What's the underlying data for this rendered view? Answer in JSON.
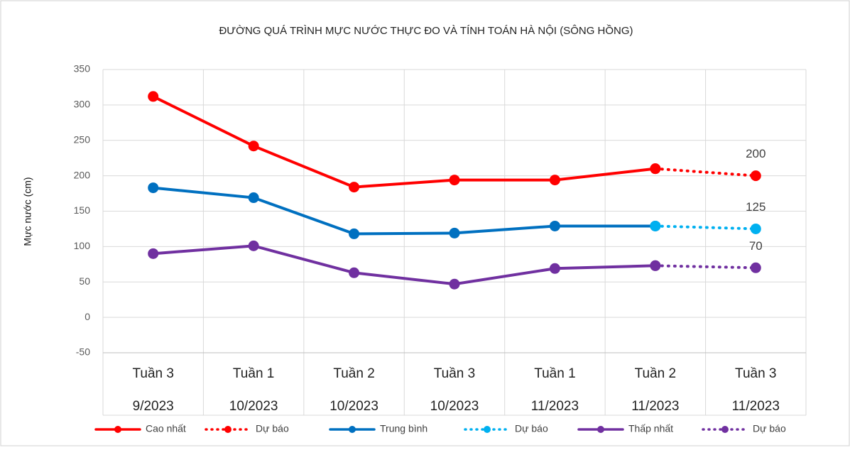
{
  "chart_data": {
    "type": "line",
    "title": "ĐƯỜNG QUÁ TRÌNH MỰC NƯỚC THỰC ĐO VÀ TÍNH TOÁN HÀ NỘI (SÔNG HỒNG)",
    "y_label": "Mực nước (cm)",
    "categories": [
      [
        "Tuần 3",
        "9/2023"
      ],
      [
        "Tuần 1",
        "10/2023"
      ],
      [
        "Tuần 2",
        "10/2023"
      ],
      [
        "Tuần 3",
        "10/2023"
      ],
      [
        "Tuần 1",
        "11/2023"
      ],
      [
        "Tuần 2",
        "11/2023"
      ],
      [
        "Tuần 3",
        "11/2023"
      ]
    ],
    "series": [
      {
        "name": "Cao nhất",
        "color": "#ff0000",
        "dash": false,
        "values": [
          312,
          242,
          184,
          194,
          194,
          210,
          null
        ]
      },
      {
        "name": "Dự báo",
        "color": "#ff0000",
        "dash": true,
        "values": [
          null,
          null,
          null,
          null,
          null,
          210,
          200
        ]
      },
      {
        "name": "Trung bình",
        "color": "#0070c0",
        "dash": false,
        "values": [
          183,
          169,
          118,
          119,
          129,
          129,
          null
        ]
      },
      {
        "name": "Dự báo",
        "color": "#00b0f0",
        "dash": true,
        "values": [
          null,
          null,
          null,
          null,
          null,
          129,
          125
        ]
      },
      {
        "name": "Thấp nhất",
        "color": "#7030a0",
        "dash": false,
        "values": [
          90,
          101,
          63,
          47,
          69,
          73,
          null
        ]
      },
      {
        "name": "Dự báo",
        "color": "#7030a0",
        "dash": true,
        "values": [
          null,
          null,
          null,
          null,
          null,
          73,
          70
        ]
      }
    ],
    "data_labels": [
      {
        "series": 1,
        "index": 6
      },
      {
        "series": 3,
        "index": 6
      },
      {
        "series": 5,
        "index": 6
      }
    ],
    "ylim": [
      -50,
      350
    ],
    "yticks": [
      -50,
      0,
      50,
      100,
      150,
      200,
      250,
      300,
      350
    ],
    "grid": true
  }
}
